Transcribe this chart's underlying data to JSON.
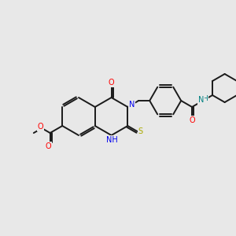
{
  "background_color": "#e8e8e8",
  "bond_color": "#1a1a1a",
  "atom_colors": {
    "O": "#ff0000",
    "N": "#0000ee",
    "S": "#aaaa00",
    "NH": "#008080",
    "C": "#1a1a1a"
  },
  "lw": 1.4,
  "fs": 7.0,
  "figsize": [
    3.0,
    3.0
  ],
  "dpi": 100
}
